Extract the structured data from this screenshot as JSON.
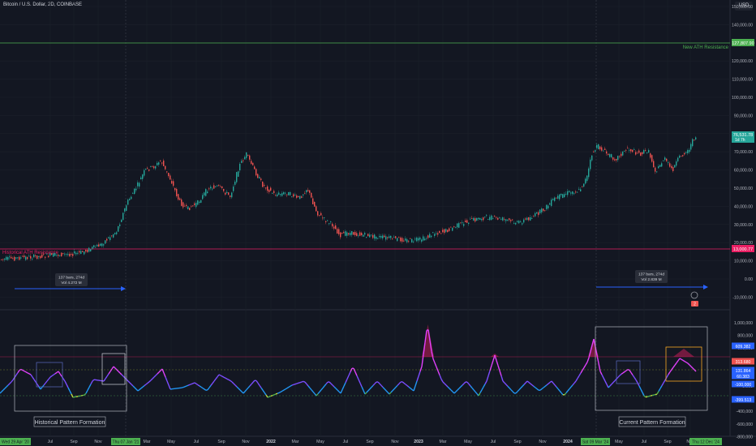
{
  "header": {
    "title": "Bitcoin / U.S. Dollar, 2D, COINBASE",
    "currency_button": "USD"
  },
  "colors": {
    "background": "#131722",
    "grid": "#1e222d",
    "bull": "#26a69a",
    "bear": "#ef5350",
    "resistance_green": "#4caf50",
    "resistance_red": "#e91e63",
    "measure_blue": "#2962ff",
    "indicator_magenta": "#e040fb"
  },
  "price_axis": {
    "labels": [
      "150,000.00",
      "140,000.00",
      "130,000.00",
      "120,000.00",
      "110,000.00",
      "100,000.00",
      "90,000.00",
      "80,000.00",
      "70,000.00",
      "60,000.00",
      "50,000.00",
      "40,000.00",
      "30,000.00",
      "20,000.00",
      "10,000.00",
      "0.00",
      "-10,000.00"
    ],
    "ath_tag": "127,807.90",
    "last_price_tag": "76,531.78",
    "countdown_tag": "1d 7h",
    "historical_ath_tag": "13,000.77"
  },
  "indicator_axis": {
    "labels": [
      "1,000,000",
      "800,000",
      "600,000",
      "400,000",
      "200,000",
      "0.000",
      "-200,000",
      "-400,000",
      "-600,000",
      "-800,000"
    ],
    "tags": [
      {
        "text": "609.382",
        "color": "#2962ff"
      },
      {
        "text": "313.680",
        "color": "#ef5350"
      },
      {
        "text": "131.864",
        "color": "#2962ff"
      },
      {
        "text": "60.383",
        "color": "#2962ff"
      },
      {
        "text": "-100.000",
        "color": "#2962ff"
      },
      {
        "text": "-399.513",
        "color": "#2962ff"
      }
    ]
  },
  "annotations": {
    "new_ath": "New ATH Resistance",
    "historical_ath": "Historical ATH Resistance",
    "measure_left_bars": "137 bars, 274d",
    "measure_left_vol": "Vol 4.272 M",
    "measure_right_bars": "137 bars, 274d",
    "measure_right_vol": "Vol 2.839 M",
    "historical_pattern": "Historical Pattern Formation",
    "current_pattern": "Current Pattern Formation",
    "flag_badge": "2"
  },
  "time_axis": {
    "labels": [
      "Jul",
      "Sep",
      "Nov",
      "Mar",
      "May",
      "Jul",
      "Sep",
      "Nov",
      "2022",
      "Mar",
      "May",
      "Jul",
      "Sep",
      "Nov",
      "2023",
      "Mar",
      "May",
      "Jul",
      "Sep",
      "Nov",
      "2024",
      "May",
      "Jul",
      "Sep",
      "Nov"
    ],
    "tags": [
      "Wed 29 Apr '20",
      "Thu 07 Jan '21",
      "Sat 09 Mar '24",
      "Thu 12 Dec '24"
    ]
  }
}
